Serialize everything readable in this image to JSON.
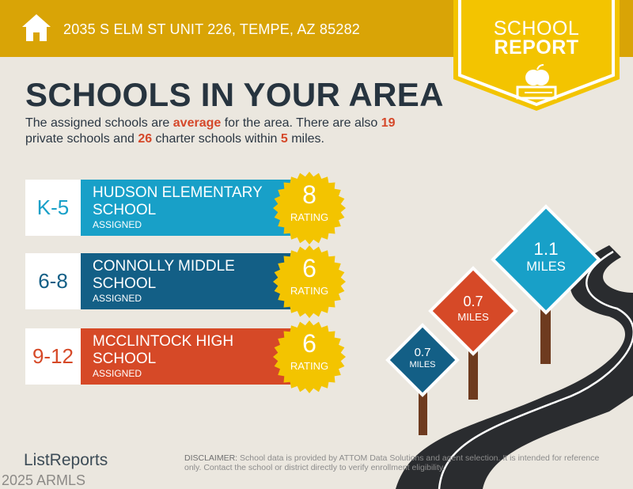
{
  "header": {
    "address": "2035 S ELM ST UNIT 226, TEMPE, AZ 85282",
    "icon": "home-icon",
    "color": "#d9a406"
  },
  "badge": {
    "line1": "SCHOOL",
    "line2": "REPORT",
    "icon": "apple-books-icon",
    "color": "#f3c400"
  },
  "title": "SCHOOLS IN YOUR AREA",
  "intro": {
    "t1": "The assigned schools are ",
    "quality": "average",
    "t2": " for the area. There are also ",
    "private_count": "19",
    "t3": " private schools and ",
    "charter_count": "26",
    "t4": " charter schools within ",
    "miles": "5",
    "t5": " miles."
  },
  "schools": [
    {
      "grades": "K-5",
      "name": "HUDSON ELEMENTARY SCHOOL",
      "status": "ASSIGNED",
      "rating": "8",
      "rating_label": "RATING",
      "color": "#18a0c8"
    },
    {
      "grades": "6-8",
      "name": "CONNOLLY MIDDLE SCHOOL",
      "status": "ASSIGNED",
      "rating": "6",
      "rating_label": "RATING",
      "color": "#135f86"
    },
    {
      "grades": "9-12",
      "name": "MCCLINTOCK HIGH SCHOOL",
      "status": "ASSIGNED",
      "rating": "6",
      "rating_label": "RATING",
      "color": "#d64927"
    }
  ],
  "signs": [
    {
      "value": "1.1",
      "unit": "MILES",
      "color": "#18a0c8"
    },
    {
      "value": "0.7",
      "unit": "MILES",
      "color": "#d64927"
    },
    {
      "value": "0.7",
      "unit": "MILES",
      "color": "#135f86"
    }
  ],
  "footer": {
    "logo": "ListReports",
    "watermark": "2025 ARMLS",
    "disclaimer_label": "DISCLAIMER:",
    "disclaimer": " School data is provided by ATTOM Data Solutions and agent selection. It is intended for reference only. Contact the school or district directly to verify enrollment eligibility."
  }
}
